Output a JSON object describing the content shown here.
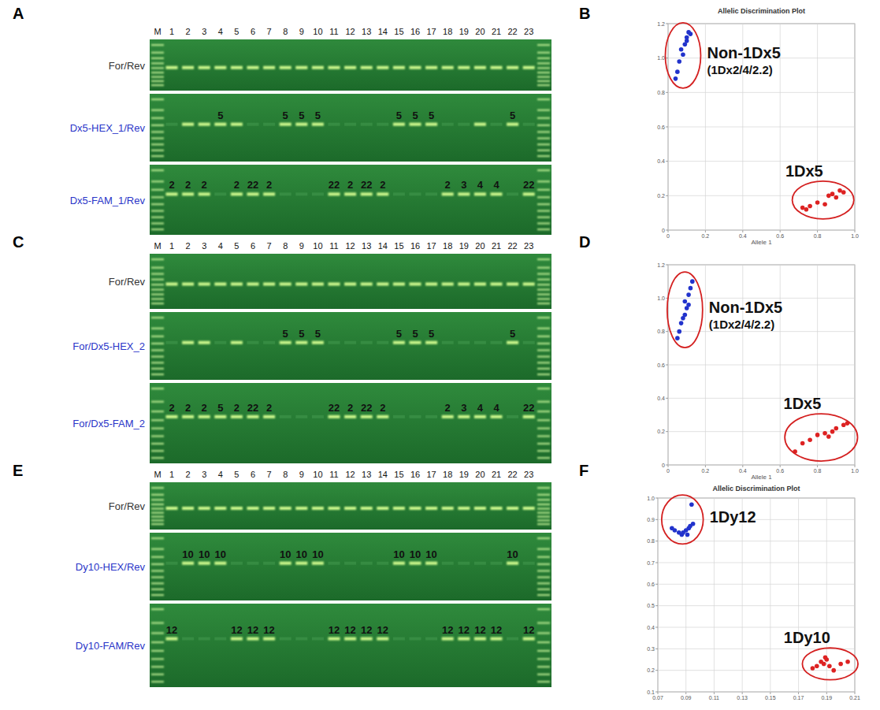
{
  "gels": [
    {
      "panel": "A",
      "lanes": [
        "M",
        "1",
        "2",
        "3",
        "4",
        "5",
        "6",
        "7",
        "8",
        "9",
        "10",
        "11",
        "12",
        "13",
        "14",
        "15",
        "16",
        "17",
        "18",
        "19",
        "20",
        "21",
        "22",
        "23"
      ],
      "rows": [
        {
          "label": "For/Rev",
          "bands": [
            true,
            true,
            true,
            true,
            true,
            true,
            true,
            true,
            true,
            true,
            true,
            true,
            true,
            true,
            true,
            true,
            true,
            true,
            true,
            true,
            true,
            true,
            true
          ],
          "annotations": [
            null,
            null,
            null,
            null,
            null,
            null,
            null,
            null,
            null,
            null,
            null,
            null,
            null,
            null,
            null,
            null,
            null,
            null,
            null,
            null,
            null,
            null,
            null
          ]
        },
        {
          "label": "Dx5-HEX_1/Rev",
          "bands": [
            false,
            true,
            true,
            true,
            true,
            false,
            false,
            true,
            true,
            true,
            false,
            false,
            false,
            false,
            true,
            true,
            true,
            false,
            false,
            true,
            false,
            true,
            false
          ],
          "annotations": [
            null,
            null,
            null,
            "5",
            null,
            null,
            null,
            "5",
            "5",
            "5",
            null,
            null,
            null,
            null,
            "5",
            "5",
            "5",
            null,
            null,
            null,
            null,
            "5",
            null
          ]
        },
        {
          "label": "Dx5-FAM_1/Rev",
          "bands": [
            true,
            true,
            true,
            false,
            true,
            true,
            true,
            false,
            false,
            false,
            true,
            true,
            true,
            true,
            false,
            false,
            false,
            true,
            true,
            true,
            true,
            false,
            true
          ],
          "annotations": [
            "2",
            "2",
            "2",
            null,
            "2",
            "22",
            "2",
            null,
            null,
            null,
            "22",
            "2",
            "22",
            "2",
            null,
            null,
            null,
            "2",
            "3",
            "4",
            "4",
            null,
            "22"
          ]
        }
      ]
    },
    {
      "panel": "C",
      "lanes": [
        "M",
        "1",
        "2",
        "3",
        "4",
        "5",
        "6",
        "7",
        "8",
        "9",
        "10",
        "11",
        "12",
        "13",
        "14",
        "15",
        "16",
        "17",
        "18",
        "19",
        "20",
        "21",
        "22",
        "23"
      ],
      "rows": [
        {
          "label": "For/Rev",
          "bands": [
            true,
            true,
            true,
            true,
            true,
            true,
            true,
            true,
            true,
            true,
            true,
            true,
            true,
            true,
            true,
            true,
            true,
            true,
            true,
            true,
            true,
            true,
            true
          ],
          "annotations": [
            null,
            null,
            null,
            null,
            null,
            null,
            null,
            null,
            null,
            null,
            null,
            null,
            null,
            null,
            null,
            null,
            null,
            null,
            null,
            null,
            null,
            null,
            null
          ]
        },
        {
          "label": "For/Dx5-HEX_2",
          "bands": [
            false,
            true,
            true,
            false,
            true,
            false,
            false,
            true,
            true,
            true,
            false,
            false,
            false,
            false,
            true,
            true,
            true,
            false,
            false,
            false,
            false,
            true,
            false
          ],
          "annotations": [
            null,
            null,
            null,
            null,
            null,
            null,
            null,
            "5",
            "5",
            "5",
            null,
            null,
            null,
            null,
            "5",
            "5",
            "5",
            null,
            null,
            null,
            null,
            "5",
            null
          ]
        },
        {
          "label": "For/Dx5-FAM_2",
          "bands": [
            true,
            true,
            true,
            true,
            true,
            true,
            true,
            false,
            false,
            false,
            true,
            true,
            true,
            true,
            false,
            false,
            false,
            true,
            true,
            true,
            true,
            false,
            true
          ],
          "annotations": [
            "2",
            "2",
            "2",
            "5",
            "2",
            "22",
            "2",
            null,
            null,
            null,
            "22",
            "2",
            "22",
            "2",
            null,
            null,
            null,
            "2",
            "3",
            "4",
            "4",
            null,
            "22"
          ]
        }
      ]
    },
    {
      "panel": "E",
      "lanes": [
        "M",
        "1",
        "2",
        "3",
        "4",
        "5",
        "6",
        "7",
        "8",
        "9",
        "10",
        "11",
        "12",
        "13",
        "14",
        "15",
        "16",
        "17",
        "18",
        "19",
        "20",
        "21",
        "22",
        "23"
      ],
      "rows": [
        {
          "label": "For/Rev",
          "bands": [
            true,
            true,
            true,
            true,
            true,
            true,
            true,
            true,
            true,
            true,
            true,
            true,
            true,
            true,
            true,
            true,
            true,
            true,
            true,
            true,
            true,
            true,
            true
          ],
          "annotations": [
            null,
            null,
            null,
            null,
            null,
            null,
            null,
            null,
            null,
            null,
            null,
            null,
            null,
            null,
            null,
            null,
            null,
            null,
            null,
            null,
            null,
            null,
            null
          ]
        },
        {
          "label": "Dy10-HEX/Rev",
          "bands": [
            false,
            true,
            true,
            true,
            false,
            false,
            false,
            true,
            true,
            true,
            false,
            false,
            false,
            false,
            true,
            true,
            true,
            false,
            false,
            false,
            false,
            true,
            false
          ],
          "annotations": [
            null,
            "10",
            "10",
            "10",
            null,
            null,
            null,
            "10",
            "10",
            "10",
            null,
            null,
            null,
            null,
            "10",
            "10",
            "10",
            null,
            null,
            null,
            null,
            "10",
            null
          ]
        },
        {
          "label": "Dy10-FAM/Rev",
          "bands": [
            true,
            false,
            false,
            false,
            true,
            true,
            true,
            false,
            false,
            false,
            true,
            true,
            true,
            true,
            false,
            false,
            false,
            true,
            true,
            true,
            true,
            false,
            true
          ],
          "annotations": [
            "12",
            null,
            null,
            null,
            "12",
            "12",
            "12",
            null,
            null,
            null,
            "12",
            "12",
            "12",
            "12",
            null,
            null,
            null,
            "12",
            "12",
            "12",
            "12",
            null,
            "12"
          ]
        }
      ]
    }
  ],
  "chart_data": [
    {
      "type": "scatter",
      "panel": "B",
      "title": "Allelic Discrimination Plot",
      "x_label": "Allele 1",
      "xlim": [
        0,
        1.0
      ],
      "ylim": [
        0,
        1.2
      ],
      "xticks": [
        0,
        0.2,
        0.4,
        0.6,
        0.8,
        {
          "value": 1,
          "label": "1.0"
        }
      ],
      "yticks": [
        0,
        0.2,
        0.4,
        0.6,
        0.8,
        {
          "value": 1,
          "label": "1.0"
        },
        1.2
      ],
      "grid": true,
      "marker": "circle",
      "series": [
        {
          "label": [
            "Non-1Dx5",
            "(1Dx2/4/2.2)"
          ],
          "color": "#2233cc",
          "x": [
            0.04,
            0.05,
            0.06,
            0.08,
            0.07,
            0.09,
            0.1,
            0.11,
            0.12,
            0.1
          ],
          "values": [
            0.88,
            0.92,
            0.98,
            1.02,
            1.05,
            1.08,
            1.12,
            1.15,
            1.14,
            1.1
          ]
        },
        {
          "label": [
            "1Dx5"
          ],
          "color": "#dd2222",
          "x": [
            0.72,
            0.74,
            0.76,
            0.8,
            0.84,
            0.86,
            0.88,
            0.9,
            0.92,
            0.94
          ],
          "values": [
            0.13,
            0.12,
            0.14,
            0.16,
            0.15,
            0.2,
            0.21,
            0.19,
            0.23,
            0.22
          ]
        }
      ]
    },
    {
      "type": "scatter",
      "panel": "D",
      "x_label": "Allele 1",
      "xlim": [
        0,
        1.0
      ],
      "ylim": [
        0,
        1.2
      ],
      "xticks": [
        0,
        0.2,
        0.4,
        0.6,
        0.8,
        {
          "value": 1,
          "label": "1.0"
        }
      ],
      "yticks": [
        0,
        0.2,
        0.4,
        0.6,
        0.8,
        {
          "value": 1,
          "label": "1.0"
        },
        1.2
      ],
      "grid": true,
      "marker": "circle",
      "series": [
        {
          "label": [
            "Non-1Dx5",
            "(1Dx2/4/2.2)"
          ],
          "color": "#2233cc",
          "x": [
            0.05,
            0.06,
            0.07,
            0.08,
            0.09,
            0.1,
            0.09,
            0.11,
            0.12,
            0.13,
            0.11
          ],
          "values": [
            0.76,
            0.8,
            0.85,
            0.88,
            0.9,
            0.94,
            0.98,
            1.02,
            1.06,
            1.1,
            0.96
          ]
        },
        {
          "label": [
            "1Dx5"
          ],
          "color": "#dd2222",
          "x": [
            0.68,
            0.72,
            0.76,
            0.8,
            0.84,
            0.88,
            0.9,
            0.94,
            0.96,
            0.86
          ],
          "values": [
            0.08,
            0.13,
            0.15,
            0.18,
            0.19,
            0.2,
            0.22,
            0.24,
            0.25,
            0.17
          ]
        }
      ]
    },
    {
      "type": "scatter",
      "panel": "F",
      "title": "Allelic Discrimination Plot",
      "xlim": [
        0.07,
        0.21
      ],
      "ylim": [
        0.1,
        1.0
      ],
      "xticks": [
        0.07,
        0.09,
        0.11,
        0.13,
        0.15,
        0.17,
        0.19,
        0.21
      ],
      "yticks": [
        0.1,
        0.2,
        0.3,
        0.4,
        0.5,
        0.6,
        0.7,
        0.8,
        0.9,
        {
          "value": 1,
          "label": "1.0"
        }
      ],
      "grid": true,
      "marker": "circle",
      "series": [
        {
          "label": [
            "1Dy12"
          ],
          "color": "#2233cc",
          "x": [
            0.08,
            0.082,
            0.085,
            0.087,
            0.088,
            0.09,
            0.092,
            0.093,
            0.095,
            0.094,
            0.091
          ],
          "values": [
            0.86,
            0.85,
            0.84,
            0.83,
            0.84,
            0.85,
            0.86,
            0.87,
            0.88,
            0.97,
            0.83
          ]
        },
        {
          "label": [
            "1Dy10"
          ],
          "color": "#dd2222",
          "x": [
            0.18,
            0.183,
            0.186,
            0.188,
            0.19,
            0.192,
            0.195,
            0.2,
            0.205,
            0.189
          ],
          "values": [
            0.21,
            0.22,
            0.24,
            0.23,
            0.25,
            0.22,
            0.2,
            0.23,
            0.24,
            0.26
          ]
        }
      ]
    }
  ]
}
